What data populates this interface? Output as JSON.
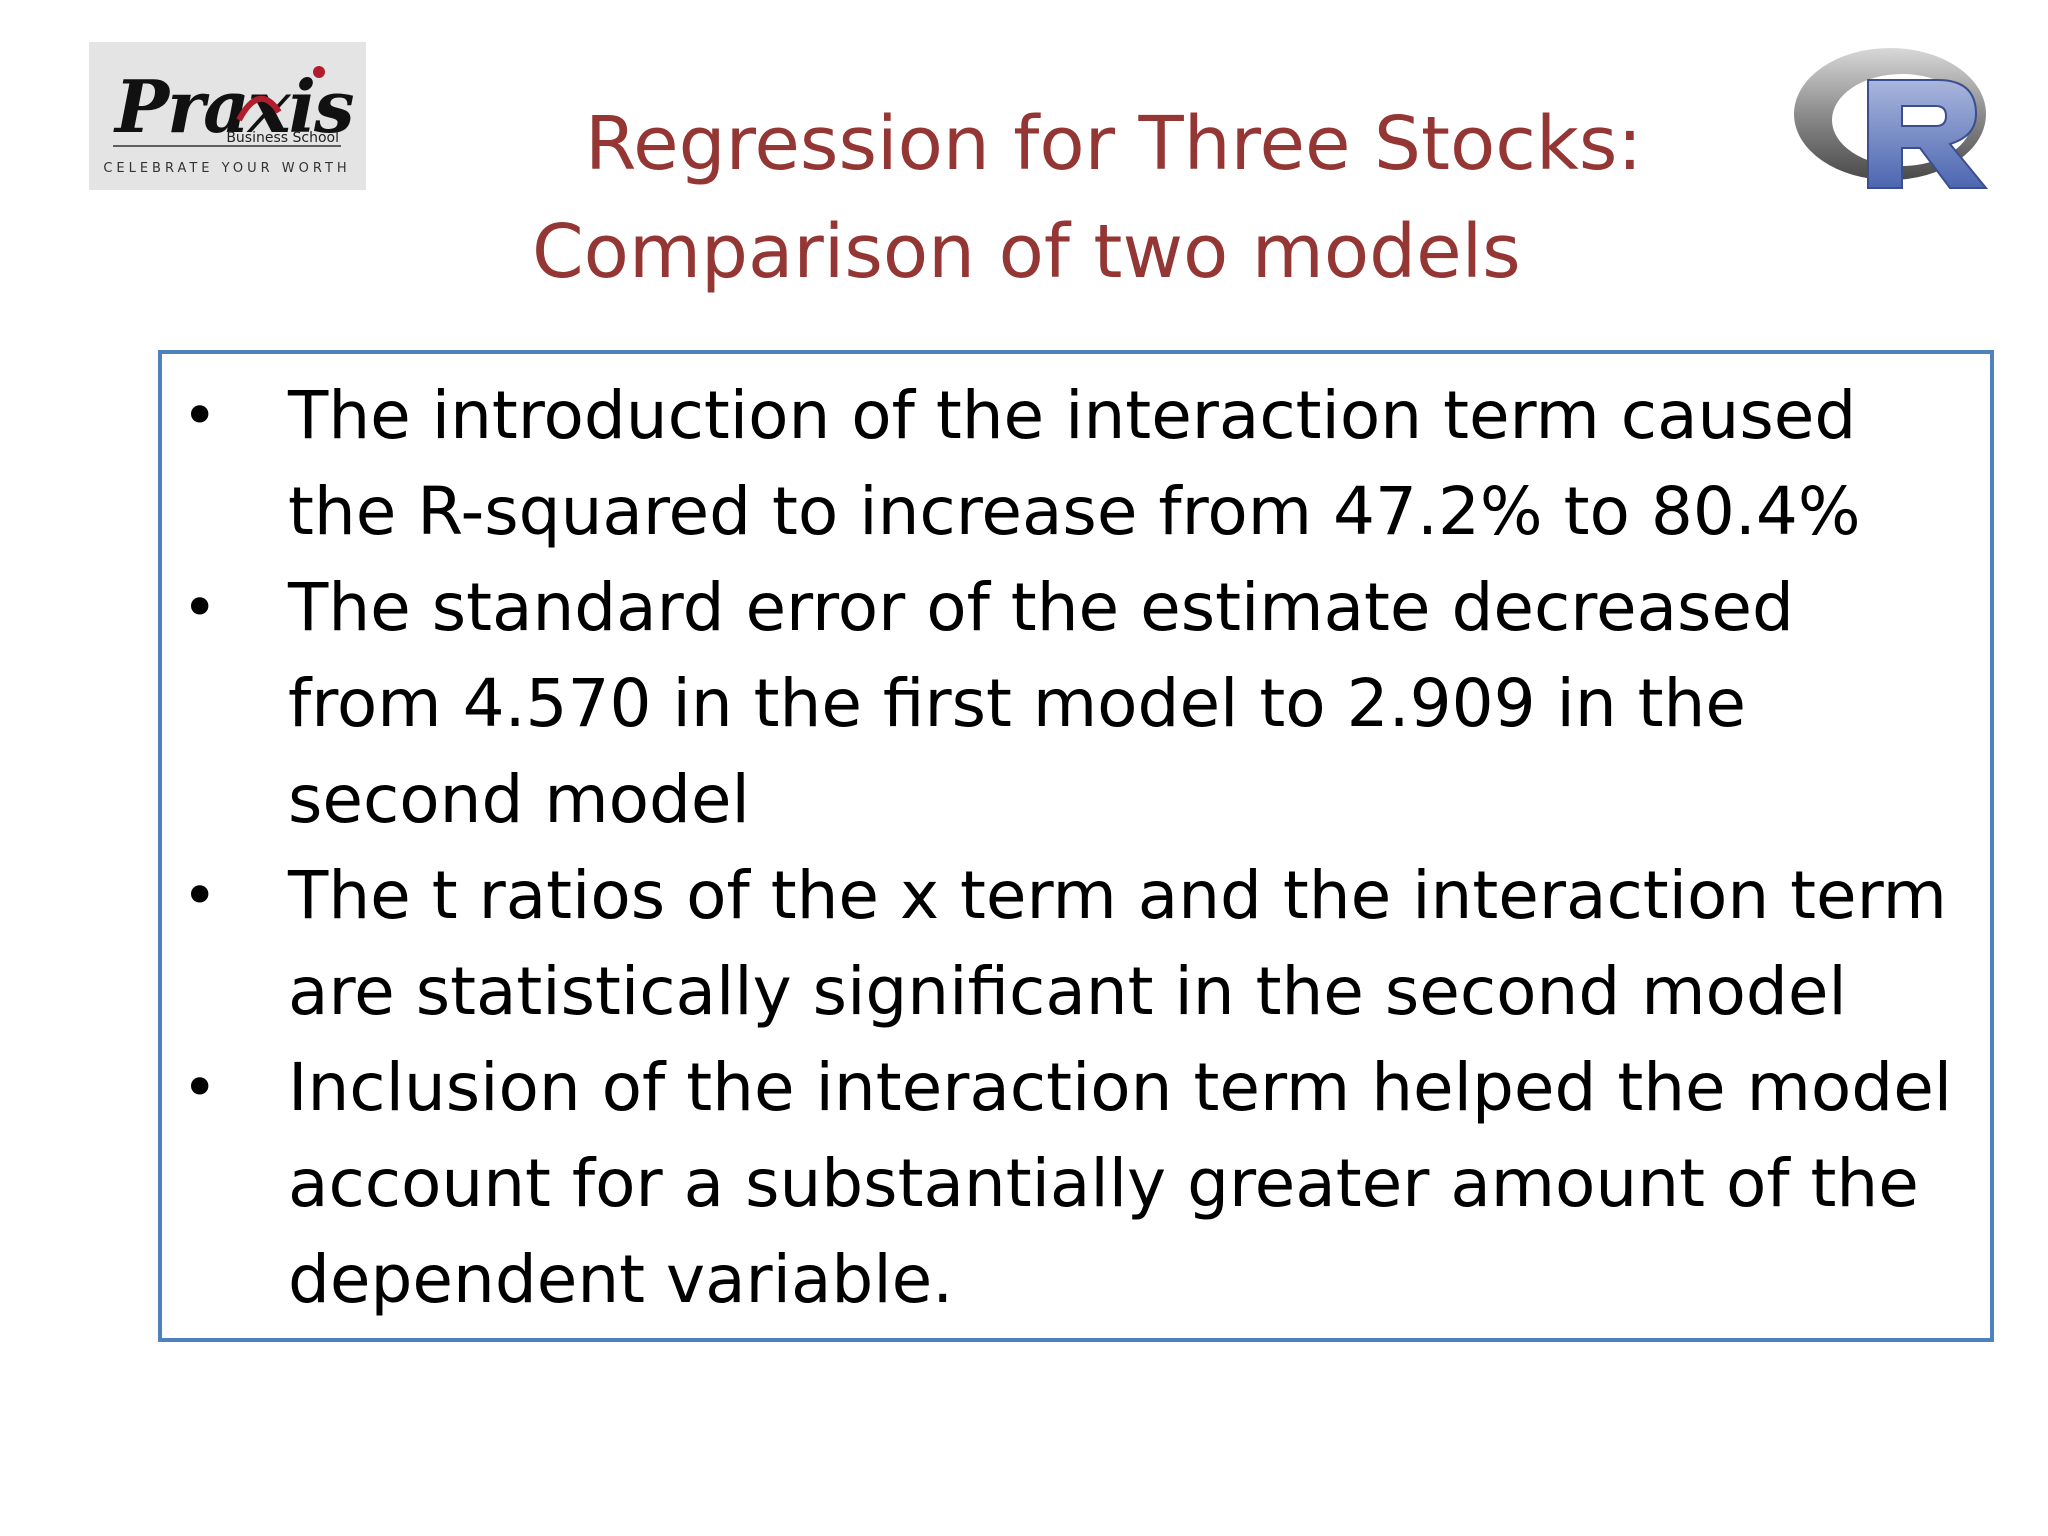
{
  "slide": {
    "title_line1": "Regression for Three Stocks:",
    "title_line2": "Comparison of two models",
    "bullet_symbol": "•",
    "bullets": [
      {
        "text": "The introduction of the interaction term caused the R-squared to increase from 47.2% to 80.4%"
      },
      {
        "text": "The standard error of the estimate decreased from 4.570 in the first model to 2.909 in the second model"
      },
      {
        "text": "The t ratios of the x term and the interaction term are statistically significant in the second model"
      },
      {
        "text": "Inclusion of the interaction term helped the model account for a substantially greater amount of the dependent variable."
      }
    ]
  },
  "logos": {
    "praxis": {
      "wordmark": "Praxis",
      "subtitle": "Business School",
      "tagline": "CELEBRATE YOUR WORTH"
    },
    "r_logo": {
      "letter": "R"
    }
  },
  "colors": {
    "title": "#943634",
    "box_border": "#4f81bd",
    "body_text": "#000000"
  }
}
